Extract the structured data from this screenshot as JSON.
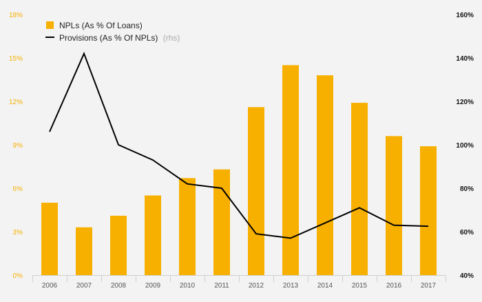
{
  "chart_data": {
    "type": "bar",
    "title": "",
    "xlabel": "",
    "categories": [
      "2006",
      "2007",
      "2008",
      "2009",
      "2010",
      "2011",
      "2012",
      "2013",
      "2014",
      "2015",
      "2016",
      "2017"
    ],
    "y_left": {
      "label": "",
      "range": [
        0,
        18
      ],
      "ticks": [
        "0%",
        "3%",
        "6%",
        "9%",
        "12%",
        "15%",
        "18%"
      ],
      "tick_values": [
        0,
        3,
        6,
        9,
        12,
        15,
        18
      ],
      "color": "#f7b000"
    },
    "y_right": {
      "label": "",
      "range": [
        40,
        160
      ],
      "ticks": [
        "40%",
        "60%",
        "80%",
        "100%",
        "120%",
        "140%",
        "160%"
      ],
      "tick_values": [
        40,
        60,
        80,
        100,
        120,
        140,
        160
      ],
      "color": "#000000"
    },
    "series": [
      {
        "name": "NPLs (As % Of Loans)",
        "type": "bar",
        "axis": "left",
        "color": "#f7b000",
        "values": [
          5.0,
          3.3,
          4.1,
          5.5,
          6.7,
          7.3,
          11.6,
          14.5,
          13.8,
          11.9,
          9.6,
          8.9
        ]
      },
      {
        "name": "Provisions (As % Of NPLs)",
        "name_suffix": "(rhs)",
        "type": "line",
        "axis": "right",
        "color": "#000000",
        "values": [
          106,
          142,
          100,
          93,
          82,
          80,
          59,
          57,
          64,
          71,
          63,
          62.5
        ]
      }
    ],
    "legend": {
      "position": "top-left"
    },
    "grid": {
      "horizontal": false,
      "vertical_ticks": true
    }
  }
}
